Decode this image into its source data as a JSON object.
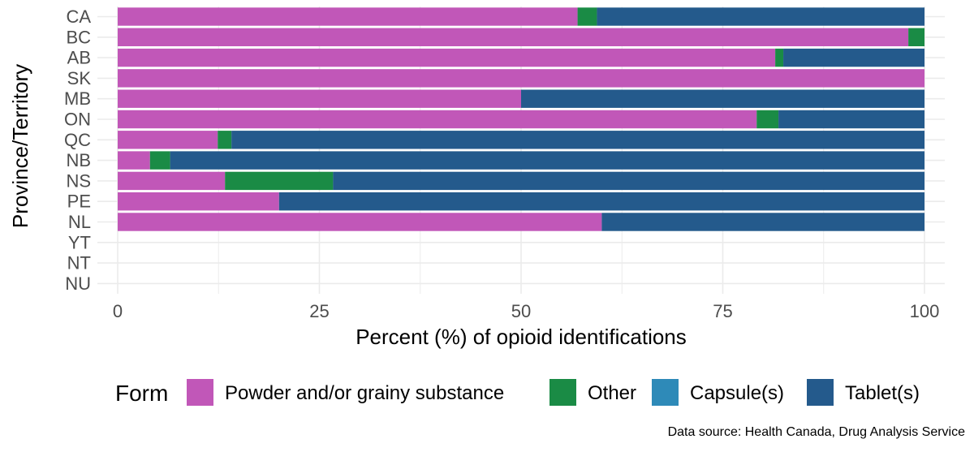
{
  "chart_data": {
    "type": "bar",
    "orientation": "horizontal",
    "stacked": true,
    "title": "",
    "xlabel": "Percent (%) of opioid identifications",
    "ylabel": "Province/Territory",
    "xlim": [
      0,
      100
    ],
    "xticks": [
      "0",
      "25",
      "50",
      "75",
      "100"
    ],
    "grid": true,
    "legend_position": "bottom",
    "legend_title": "Form",
    "categories": [
      "CA",
      "BC",
      "AB",
      "SK",
      "MB",
      "ON",
      "QC",
      "NB",
      "NS",
      "PE",
      "NL",
      "YT",
      "NT",
      "NU"
    ],
    "series": [
      {
        "name": "Powder and/or grainy substance",
        "color": "#C157B8",
        "values": [
          57,
          98,
          81.5,
          100,
          50,
          79.2,
          12.4,
          4,
          13.3,
          20,
          60,
          0,
          0,
          0
        ]
      },
      {
        "name": "Other",
        "color": "#1A8B45",
        "values": [
          2.4,
          2,
          1,
          0,
          0,
          2.7,
          1.7,
          2.5,
          13.4,
          0,
          0,
          0,
          0,
          0
        ]
      },
      {
        "name": "Capsule(s)",
        "color": "#2E8AB8",
        "values": [
          0,
          0,
          0,
          0,
          0,
          0,
          0,
          0,
          0,
          0,
          0,
          0,
          0,
          0
        ]
      },
      {
        "name": "Tablet(s)",
        "color": "#245A8C",
        "values": [
          40.6,
          0,
          17.5,
          0,
          50,
          18.1,
          85.9,
          93.5,
          73.3,
          80,
          40,
          0,
          0,
          0
        ]
      }
    ],
    "source_note": "Data source: Health Canada, Drug Analysis Service"
  }
}
